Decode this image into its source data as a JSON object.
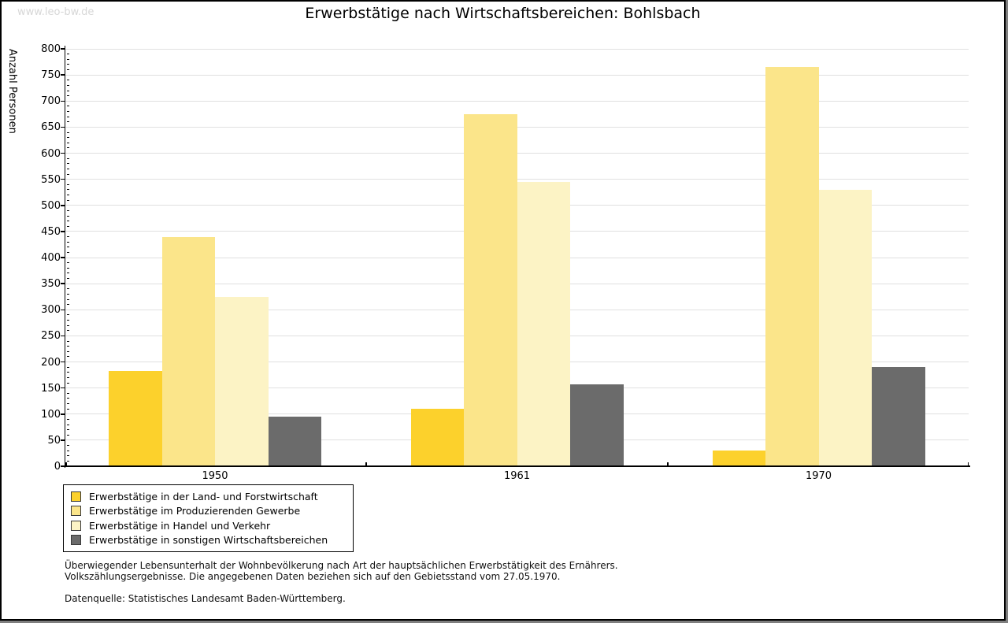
{
  "watermark": "www.leo-bw.de",
  "title": "Erwerbstätige nach Wirtschaftsbereichen: Bohlsbach",
  "chart_data": {
    "type": "bar",
    "title": "Erwerbstätige nach Wirtschaftsbereichen: Bohlsbach",
    "xlabel": "",
    "ylabel": "Anzahl Personen",
    "categories": [
      "1950",
      "1961",
      "1970"
    ],
    "series": [
      {
        "name": "Erwerbstätige in der Land- und Forstwirtschaft",
        "color": "#fcd12c",
        "values": [
          182,
          110,
          30
        ]
      },
      {
        "name": "Erwerbstätige im Produzierenden Gewerbe",
        "color": "#fbe58a",
        "values": [
          440,
          675,
          765
        ]
      },
      {
        "name": "Erwerbstätige in Handel und Verkehr",
        "color": "#fcf3c5",
        "values": [
          325,
          545,
          530
        ]
      },
      {
        "name": "Erwerbstätige in sonstigen Wirtschaftsbereichen",
        "color": "#6b6b6b",
        "values": [
          95,
          157,
          190
        ]
      }
    ],
    "ylim": [
      0,
      800
    ],
    "ytick_step": 50,
    "ytick_minor_step": 10,
    "grid": true,
    "legend_position": "bottom-left",
    "colors": {
      "grid": "#e0e0e0",
      "axis": "#000000",
      "background": "#ffffff"
    }
  },
  "footnotes": {
    "line1": "Überwiegender Lebensunterhalt der Wohnbevölkerung nach Art der hauptsächlichen Erwerbstätigkeit des Ernährers.",
    "line2": "Volkszählungsergebnisse. Die angegebenen Daten beziehen sich auf den Gebietsstand vom 27.05.1970.",
    "source": "Datenquelle: Statistisches Landesamt Baden-Württemberg."
  }
}
